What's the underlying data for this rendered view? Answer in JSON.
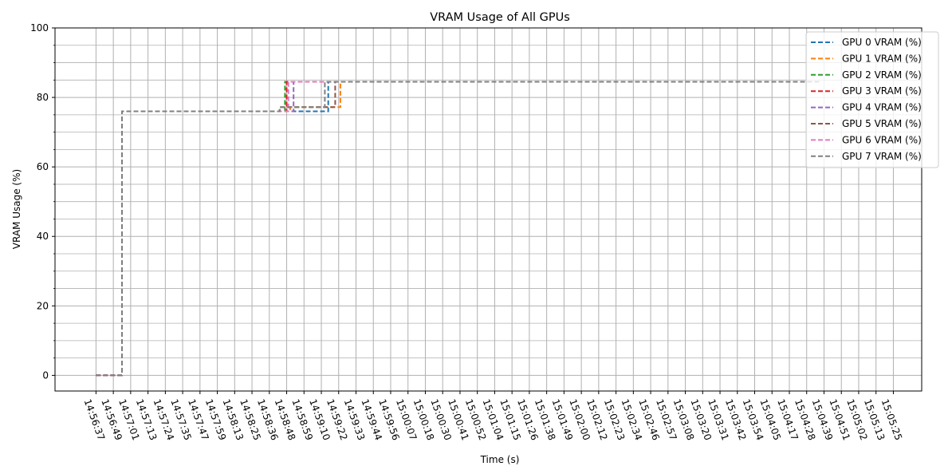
{
  "chart_data": {
    "type": "line",
    "title": "VRAM Usage of All GPUs",
    "xlabel": "Time (s)",
    "ylabel": "VRAM Usage (%)",
    "ylim": [
      -4.5,
      100
    ],
    "yticks": [
      0,
      20,
      40,
      60,
      80,
      100
    ],
    "grid": true,
    "legend_position": "top-right",
    "x_tick_labels": [
      "14:56:37",
      "14:56:49",
      "14:57:01",
      "14:57:13",
      "14:57:24",
      "14:57:35",
      "14:57:47",
      "14:57:59",
      "14:58:13",
      "14:58:25",
      "14:58:36",
      "14:58:48",
      "14:58:59",
      "14:59:10",
      "14:59:22",
      "14:59:33",
      "14:59:44",
      "14:59:56",
      "15:00:07",
      "15:00:18",
      "15:00:30",
      "15:00:41",
      "15:00:52",
      "15:01:04",
      "15:01:15",
      "15:01:26",
      "15:01:38",
      "15:01:49",
      "15:02:00",
      "15:02:12",
      "15:02:23",
      "15:02:34",
      "15:02:46",
      "15:02:57",
      "15:03:08",
      "15:03:20",
      "15:03:31",
      "15:03:42",
      "15:03:54",
      "15:04:05",
      "15:04:17",
      "15:04:28",
      "15:04:39",
      "15:04:51",
      "15:05:02",
      "15:05:13",
      "15:05:25"
    ],
    "series": [
      {
        "name": "GPU 0 VRAM (%)",
        "color": "#1f77b4",
        "steps": [
          [
            14.56,
            0
          ],
          [
            14.56,
            0
          ]
        ]
      },
      {
        "name": "GPU 0 VRAM (%)",
        "color": "#1f77b4",
        "x": [
          0.0,
          1.5,
          1.5,
          13.4,
          13.4,
          41.8
        ],
        "y": [
          0,
          0,
          76,
          76,
          84.5,
          84.5
        ]
      },
      {
        "name": "GPU 1 VRAM (%)",
        "color": "#ff7f0e",
        "x": [
          0.0,
          1.5,
          1.5,
          11.2,
          11.2,
          14.1,
          14.1,
          41.8
        ],
        "y": [
          0,
          0,
          76,
          76,
          77.2,
          77.2,
          84.5,
          84.5
        ]
      },
      {
        "name": "GPU 2 VRAM (%)",
        "color": "#2ca02c",
        "x": [
          0.0,
          1.5,
          1.5,
          10.9,
          10.9,
          41.8
        ],
        "y": [
          0,
          0,
          76,
          76,
          84.5,
          84.5
        ]
      },
      {
        "name": "GPU 3 VRAM (%)",
        "color": "#d62728",
        "x": [
          0.0,
          1.5,
          1.5,
          11.0,
          11.0,
          41.8
        ],
        "y": [
          0,
          0,
          76,
          76,
          84.5,
          84.5
        ]
      },
      {
        "name": "GPU 4 VRAM (%)",
        "color": "#9467bd",
        "x": [
          0.0,
          1.5,
          1.5,
          11.4,
          11.4,
          41.8
        ],
        "y": [
          0,
          0,
          76,
          76,
          84.5,
          84.5
        ]
      },
      {
        "name": "GPU 5 VRAM (%)",
        "color": "#8c564b",
        "x": [
          0.0,
          1.5,
          1.5,
          10.6,
          10.6,
          13.8,
          13.8,
          41.8
        ],
        "y": [
          0,
          0,
          76,
          76,
          77.2,
          77.2,
          84.5,
          84.5
        ]
      },
      {
        "name": "GPU 6 VRAM (%)",
        "color": "#e377c2",
        "x": [
          0.0,
          1.5,
          1.5,
          11.1,
          11.1,
          41.8
        ],
        "y": [
          0,
          0,
          76,
          76,
          84.5,
          84.5
        ]
      },
      {
        "name": "GPU 7 VRAM (%)",
        "color": "#7f7f7f",
        "x": [
          0.0,
          1.5,
          1.5,
          10.6,
          10.6,
          13.2,
          13.2,
          41.8
        ],
        "y": [
          0,
          0,
          76,
          76,
          77.2,
          77.2,
          84.5,
          84.5
        ]
      }
    ]
  }
}
